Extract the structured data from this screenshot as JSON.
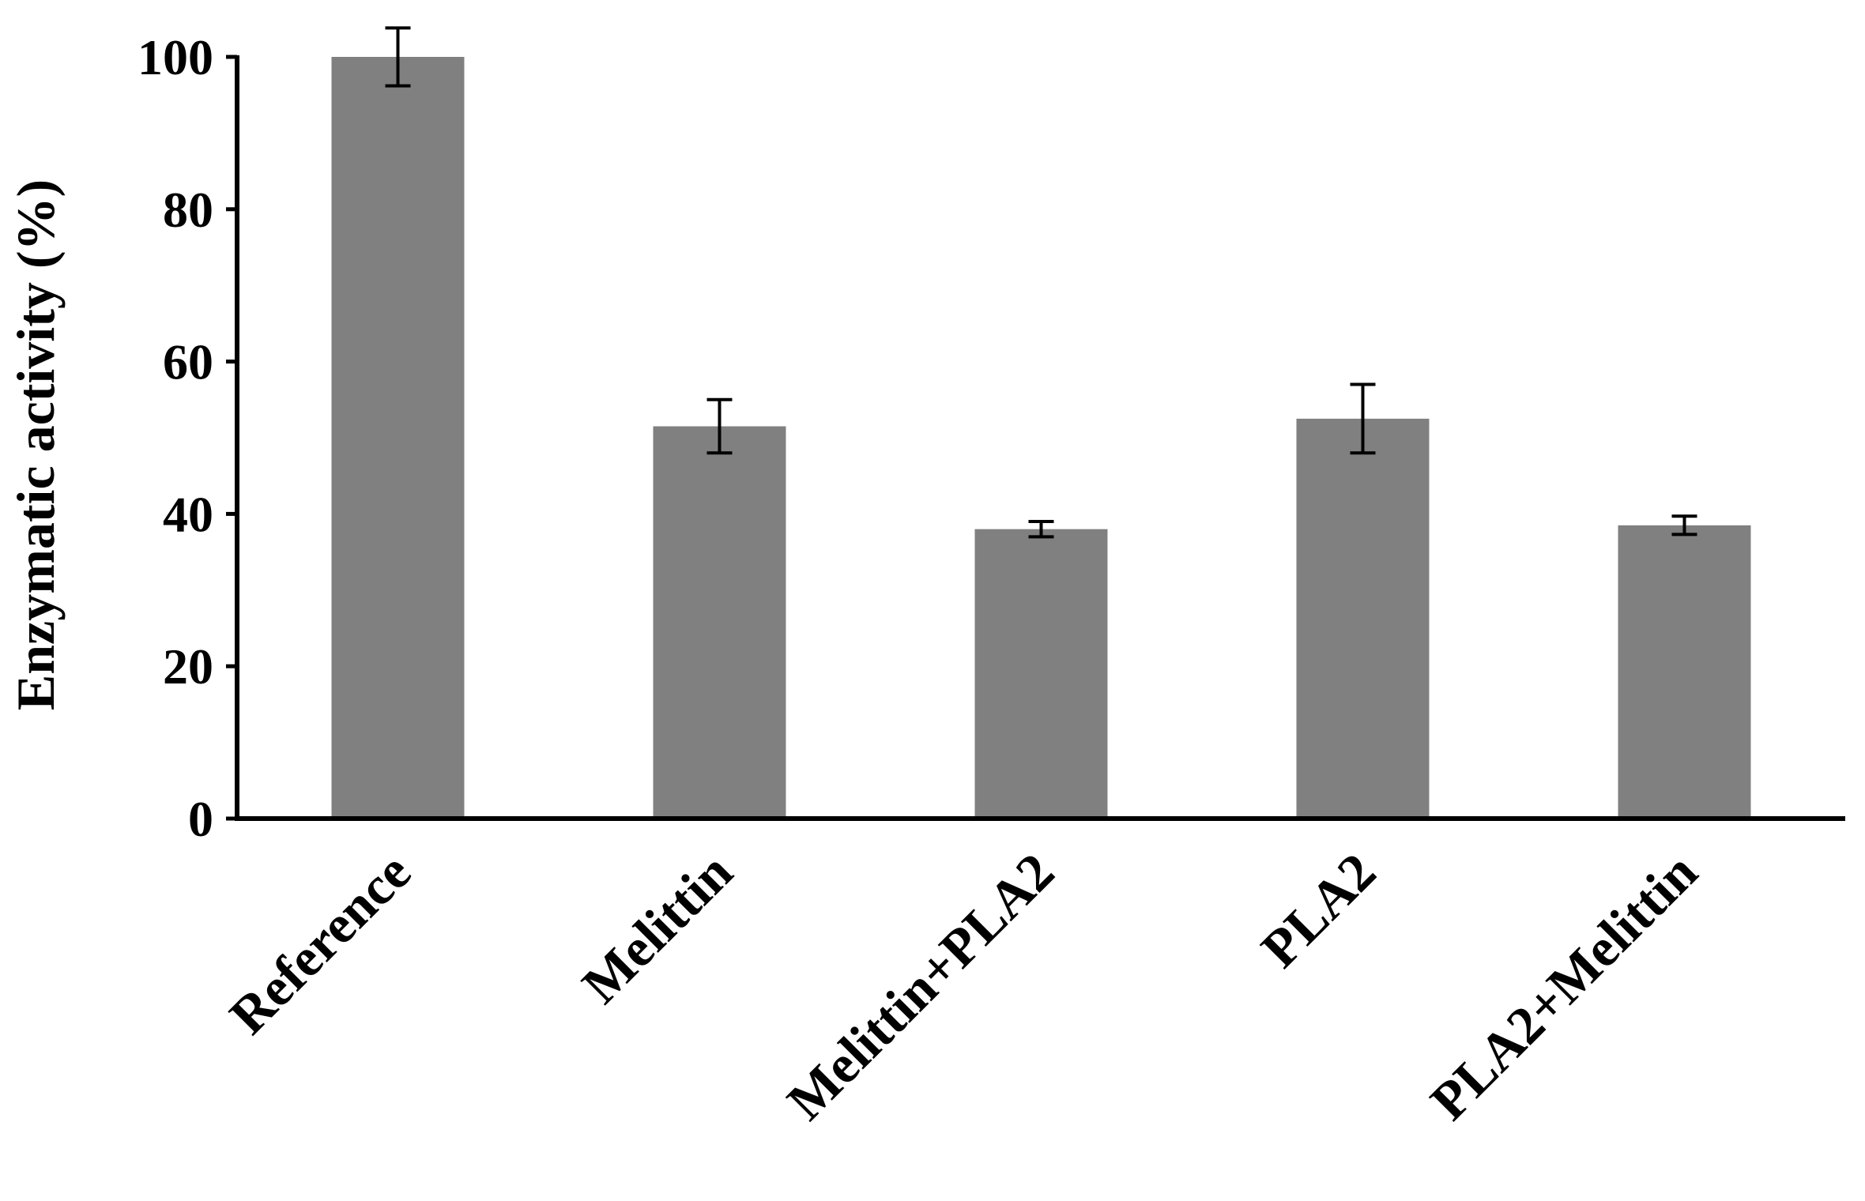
{
  "chart_data": {
    "type": "bar",
    "title": "",
    "xlabel": "",
    "ylabel": "Enzymatic activity (%)",
    "categories": [
      "Reference",
      "Melittin",
      "Melittin+PLA2",
      "PLA2",
      "PLA2+Melittin"
    ],
    "values": [
      100,
      51.5,
      38,
      52.5,
      38.5
    ],
    "errors": [
      3.8,
      3.5,
      1.0,
      4.5,
      1.2
    ],
    "ylim": [
      0,
      100
    ],
    "yticks": [
      0,
      20,
      40,
      60,
      80,
      100
    ],
    "grid": false,
    "legend": "none",
    "colors": {
      "bar": "#808080",
      "axis": "#000000",
      "error_bar": "#000000",
      "tick_label": "#000000"
    }
  }
}
